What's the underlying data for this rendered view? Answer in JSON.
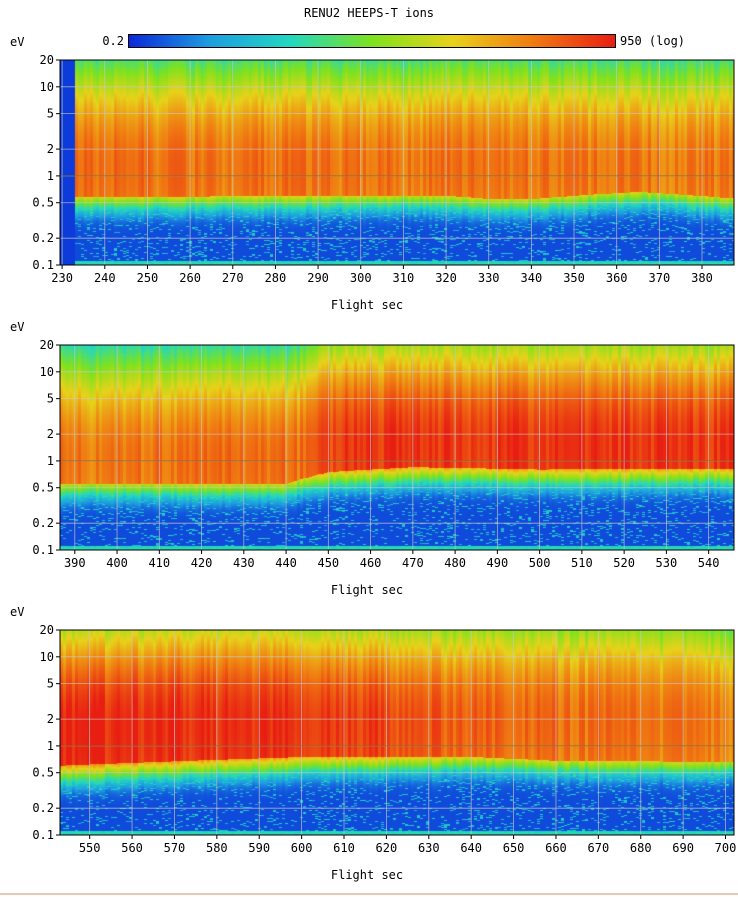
{
  "title": "RENU2 HEEPS-T ions",
  "colorbar": {
    "min_label": "0.2",
    "max_label": "950 (log)",
    "scale": "log",
    "colors": [
      "#0a28d8",
      "#1e9de0",
      "#22d8c0",
      "#7ee21e",
      "#e8d21a",
      "#f07a12",
      "#e81e12"
    ]
  },
  "chart_data": [
    {
      "type": "heatmap",
      "ylabel": "eV",
      "xlabel": "Flight sec",
      "xlim": [
        229.5,
        387.5
      ],
      "ylim": [
        0.1,
        20
      ],
      "yscale": "log",
      "x_ticks": [
        230,
        240,
        250,
        260,
        270,
        280,
        290,
        300,
        310,
        320,
        330,
        340,
        350,
        360,
        370,
        380
      ],
      "y_ticks": [
        0.1,
        0.2,
        0.5,
        1,
        2,
        5,
        10,
        20
      ],
      "y_tick_labels": [
        "0.1",
        "0.2",
        "0.5",
        "1",
        "2",
        "5",
        "10",
        "20"
      ],
      "data_start": 233,
      "ion_band": [
        [
          233,
          1.3
        ],
        [
          300,
          1.3
        ],
        [
          330,
          1.4
        ],
        [
          345,
          1.3
        ],
        [
          365,
          1.3
        ],
        [
          387,
          1.3
        ]
      ],
      "band_bottom": [
        [
          233,
          0.58
        ],
        [
          320,
          0.6
        ],
        [
          330,
          0.55
        ],
        [
          340,
          0.55
        ],
        [
          355,
          0.62
        ],
        [
          365,
          0.66
        ],
        [
          387,
          0.56
        ]
      ],
      "band_peak_count": [
        [
          233,
          300
        ],
        [
          387,
          250
        ]
      ]
    },
    {
      "type": "heatmap",
      "ylabel": "eV",
      "xlabel": "Flight sec",
      "xlim": [
        386.5,
        546
      ],
      "ylim": [
        0.1,
        20
      ],
      "yscale": "log",
      "x_ticks": [
        390,
        400,
        410,
        420,
        430,
        440,
        450,
        460,
        470,
        480,
        490,
        500,
        510,
        520,
        530,
        540
      ],
      "y_ticks": [
        0.1,
        0.2,
        0.5,
        1,
        2,
        5,
        10,
        20
      ],
      "y_tick_labels": [
        "0.1",
        "0.2",
        "0.5",
        "1",
        "2",
        "5",
        "10",
        "20"
      ],
      "data_start": 386.5,
      "ion_band": [
        [
          386.5,
          1.1
        ],
        [
          440,
          1.1
        ],
        [
          450,
          1.6
        ],
        [
          460,
          1.5
        ],
        [
          480,
          1.6
        ],
        [
          500,
          1.5
        ],
        [
          520,
          1.5
        ],
        [
          546,
          1.5
        ]
      ],
      "band_bottom": [
        [
          386.5,
          0.55
        ],
        [
          440,
          0.55
        ],
        [
          450,
          0.75
        ],
        [
          470,
          0.85
        ],
        [
          500,
          0.8
        ],
        [
          546,
          0.82
        ]
      ],
      "band_peak_count": [
        [
          386.5,
          250
        ],
        [
          445,
          300
        ],
        [
          455,
          700
        ],
        [
          546,
          750
        ]
      ]
    },
    {
      "type": "heatmap",
      "ylabel": "eV",
      "xlabel": "Flight sec",
      "xlim": [
        543,
        702
      ],
      "ylim": [
        0.1,
        20
      ],
      "yscale": "log",
      "x_ticks": [
        550,
        560,
        570,
        580,
        590,
        600,
        610,
        620,
        630,
        640,
        650,
        660,
        670,
        680,
        690,
        700
      ],
      "y_ticks": [
        0.1,
        0.2,
        0.5,
        1,
        2,
        5,
        10,
        20
      ],
      "y_tick_labels": [
        "0.1",
        "0.2",
        "0.5",
        "1",
        "2",
        "5",
        "10",
        "20"
      ],
      "data_start": 543,
      "ion_band": [
        [
          543,
          1.5
        ],
        [
          580,
          1.8
        ],
        [
          600,
          1.7
        ],
        [
          630,
          1.8
        ],
        [
          650,
          2.0
        ],
        [
          680,
          2.0
        ],
        [
          702,
          1.8
        ]
      ],
      "band_bottom": [
        [
          543,
          0.6
        ],
        [
          600,
          0.75
        ],
        [
          640,
          0.75
        ],
        [
          660,
          0.68
        ],
        [
          702,
          0.66
        ]
      ],
      "band_peak_count": [
        [
          543,
          900
        ],
        [
          600,
          800
        ],
        [
          640,
          350
        ],
        [
          702,
          220
        ]
      ]
    }
  ]
}
